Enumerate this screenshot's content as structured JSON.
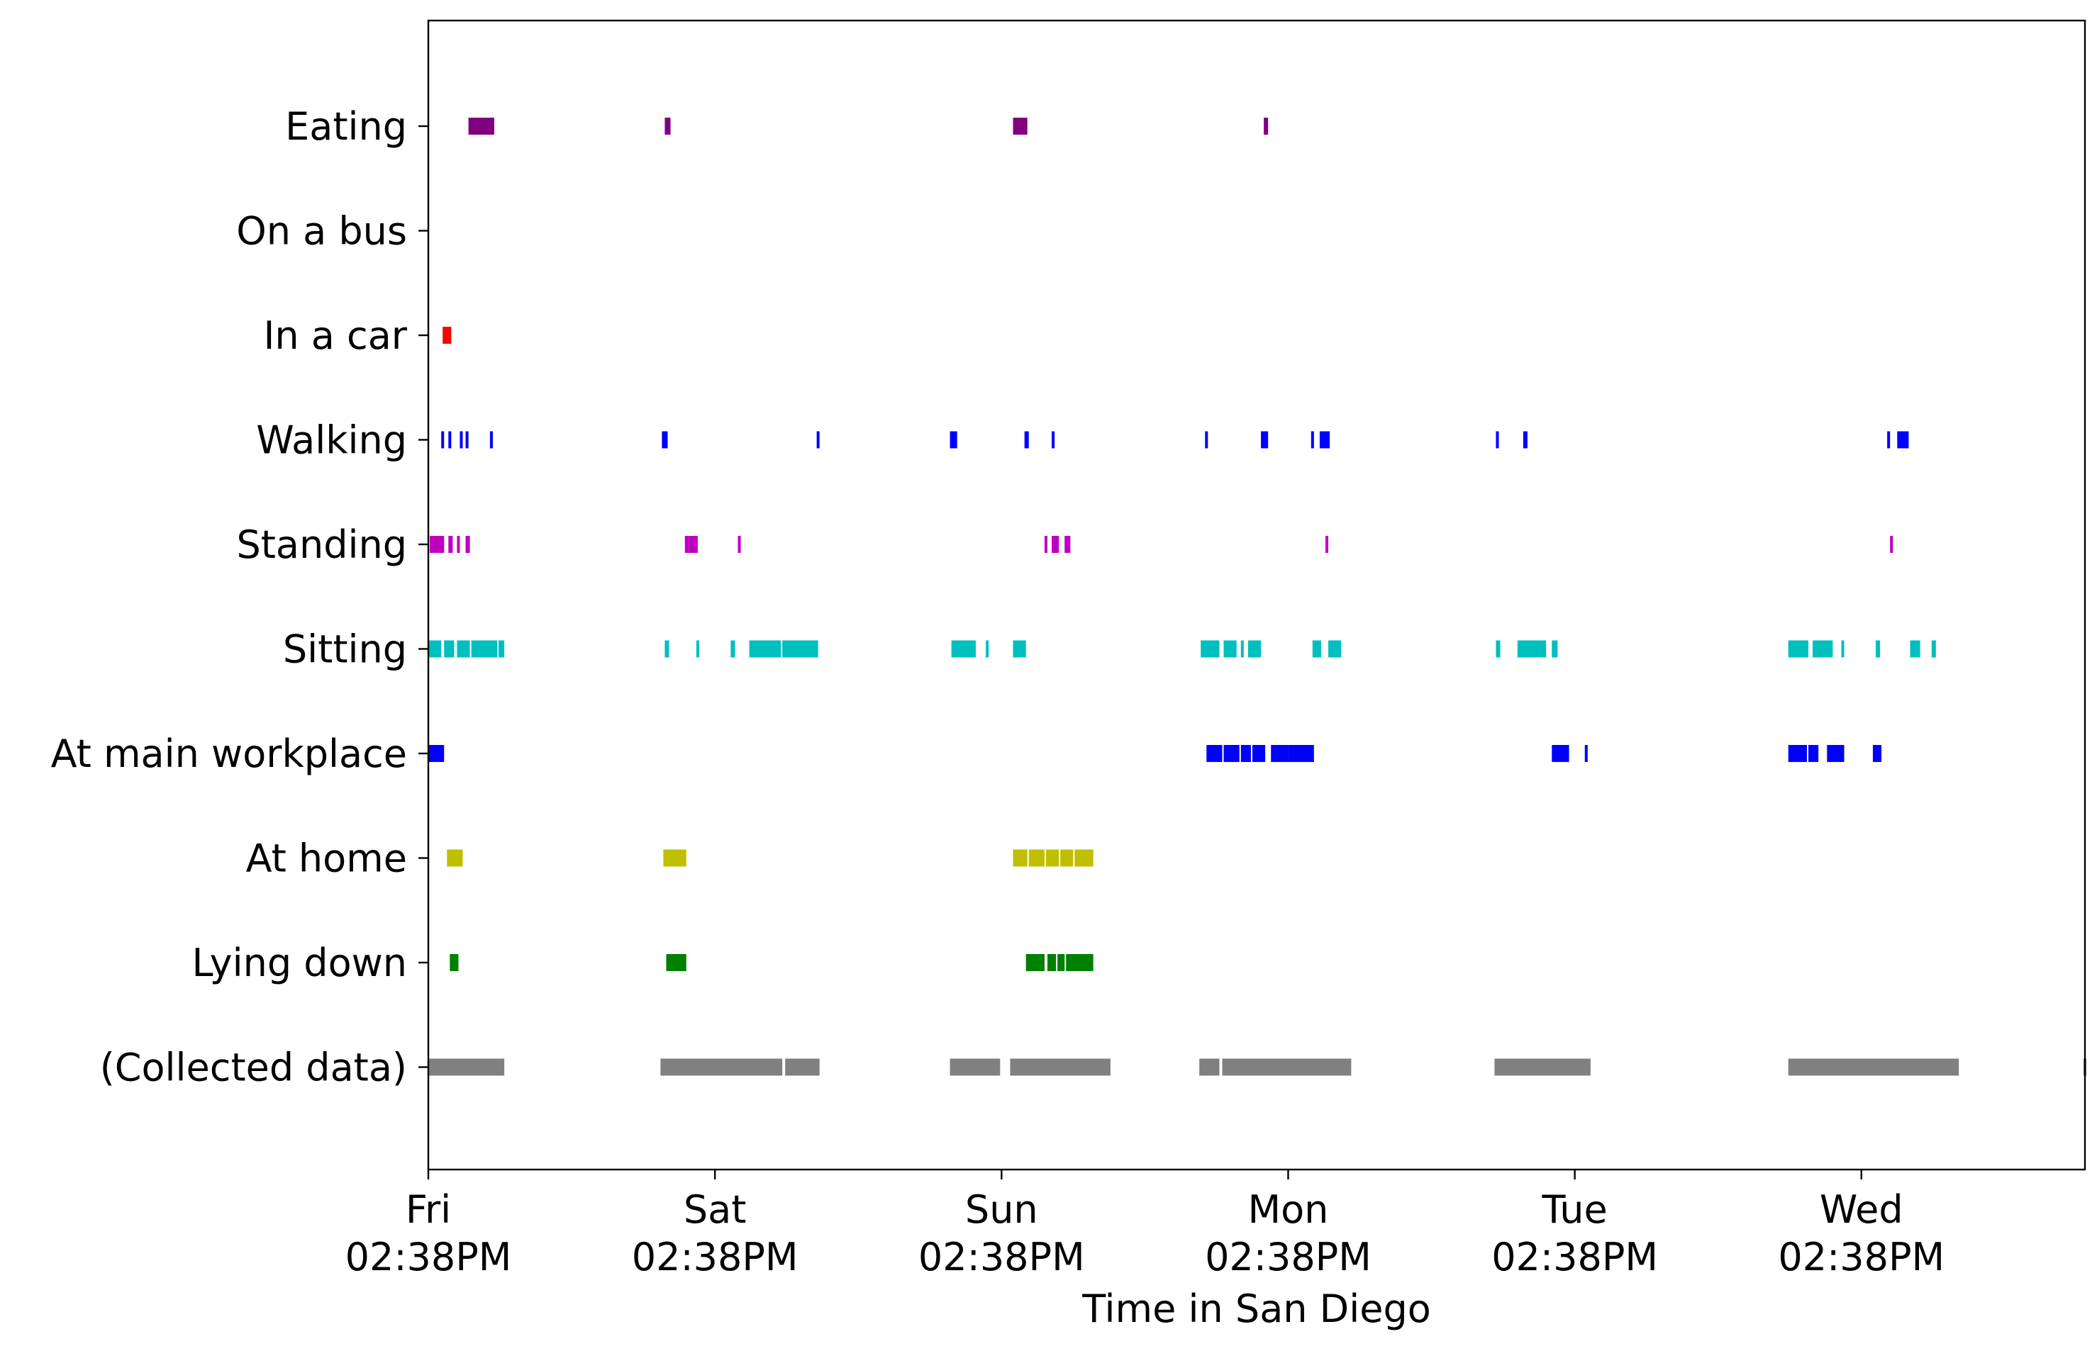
{
  "chart_data": {
    "type": "timeline",
    "title": "",
    "xlabel": "Time in San Diego",
    "ylabel": "",
    "x_unit": "days since Fri 02:38PM",
    "xlim": [
      0,
      5.78
    ],
    "grid": false,
    "x_ticks": [
      {
        "value": 0,
        "day": "Fri",
        "time": "02:38PM"
      },
      {
        "value": 1,
        "day": "Sat",
        "time": "02:38PM"
      },
      {
        "value": 2,
        "day": "Sun",
        "time": "02:38PM"
      },
      {
        "value": 3,
        "day": "Mon",
        "time": "02:38PM"
      },
      {
        "value": 4,
        "day": "Tue",
        "time": "02:38PM"
      },
      {
        "value": 5,
        "day": "Wed",
        "time": "02:38PM"
      }
    ],
    "rows": [
      {
        "label": "Eating",
        "color": "#800080",
        "intervals": [
          [
            0.14,
            0.23
          ],
          [
            0.825,
            0.845
          ],
          [
            2.04,
            2.09
          ],
          [
            2.915,
            2.93
          ]
        ]
      },
      {
        "label": "On a bus",
        "color": "#0000ff",
        "intervals": []
      },
      {
        "label": "In a car",
        "color": "#ff0000",
        "intervals": [
          [
            0.05,
            0.08
          ]
        ]
      },
      {
        "label": "Walking",
        "color": "#0000ff",
        "intervals": [
          [
            0.045,
            0.055
          ],
          [
            0.07,
            0.08
          ],
          [
            0.11,
            0.12
          ],
          [
            0.13,
            0.14
          ],
          [
            0.215,
            0.225
          ],
          [
            0.815,
            0.835
          ],
          [
            1.355,
            1.365
          ],
          [
            1.82,
            1.845
          ],
          [
            2.08,
            2.095
          ],
          [
            2.175,
            2.185
          ],
          [
            2.71,
            2.72
          ],
          [
            2.905,
            2.93
          ],
          [
            3.08,
            3.09
          ],
          [
            3.11,
            3.145
          ],
          [
            3.725,
            3.735
          ],
          [
            3.82,
            3.835
          ],
          [
            5.09,
            5.1
          ],
          [
            5.125,
            5.165
          ]
        ]
      },
      {
        "label": "Standing",
        "color": "#bf00bf",
        "intervals": [
          [
            0.005,
            0.055
          ],
          [
            0.07,
            0.085
          ],
          [
            0.1,
            0.11
          ],
          [
            0.13,
            0.145
          ],
          [
            0.895,
            0.91
          ],
          [
            0.91,
            0.94
          ],
          [
            1.08,
            1.09
          ],
          [
            2.15,
            2.16
          ],
          [
            2.175,
            2.2
          ],
          [
            2.22,
            2.24
          ],
          [
            3.13,
            3.14
          ],
          [
            5.1,
            5.11
          ]
        ]
      },
      {
        "label": "Sitting",
        "color": "#00bfbf",
        "intervals": [
          [
            0.0,
            0.045
          ],
          [
            0.055,
            0.09
          ],
          [
            0.1,
            0.145
          ],
          [
            0.15,
            0.24
          ],
          [
            0.245,
            0.265
          ],
          [
            0.825,
            0.84
          ],
          [
            0.935,
            0.945
          ],
          [
            1.055,
            1.07
          ],
          [
            1.12,
            1.23
          ],
          [
            1.235,
            1.36
          ],
          [
            1.825,
            1.91
          ],
          [
            1.945,
            1.955
          ],
          [
            2.04,
            2.085
          ],
          [
            2.695,
            2.76
          ],
          [
            2.775,
            2.82
          ],
          [
            2.835,
            2.845
          ],
          [
            2.86,
            2.905
          ],
          [
            3.085,
            3.115
          ],
          [
            3.14,
            3.185
          ],
          [
            3.725,
            3.74
          ],
          [
            3.8,
            3.9
          ],
          [
            3.92,
            3.94
          ],
          [
            4.745,
            4.815
          ],
          [
            4.83,
            4.9
          ],
          [
            4.93,
            4.94
          ],
          [
            5.05,
            5.065
          ],
          [
            5.17,
            5.205
          ],
          [
            5.245,
            5.26
          ]
        ]
      },
      {
        "label": "At main workplace",
        "color": "#0000ff",
        "intervals": [
          [
            0.0,
            0.055
          ],
          [
            2.715,
            2.77
          ],
          [
            2.775,
            2.83
          ],
          [
            2.835,
            2.87
          ],
          [
            2.875,
            2.92
          ],
          [
            2.94,
            3.0
          ],
          [
            3.0,
            3.09
          ],
          [
            3.92,
            3.98
          ],
          [
            4.035,
            4.045
          ],
          [
            4.745,
            4.81
          ],
          [
            4.815,
            4.85
          ],
          [
            4.88,
            4.94
          ],
          [
            5.04,
            5.07
          ]
        ]
      },
      {
        "label": "At home",
        "color": "#bfbf00",
        "intervals": [
          [
            0.065,
            0.12
          ],
          [
            0.82,
            0.9
          ],
          [
            2.04,
            2.09
          ],
          [
            2.095,
            2.15
          ],
          [
            2.155,
            2.2
          ],
          [
            2.205,
            2.25
          ],
          [
            2.255,
            2.32
          ]
        ]
      },
      {
        "label": "Lying down",
        "color": "#008000",
        "intervals": [
          [
            0.075,
            0.105
          ],
          [
            0.83,
            0.9
          ],
          [
            2.085,
            2.15
          ],
          [
            2.16,
            2.19
          ],
          [
            2.195,
            2.22
          ],
          [
            2.225,
            2.32
          ]
        ]
      },
      {
        "label": "(Collected data)",
        "color": "#808080",
        "intervals": [
          [
            0.0,
            0.265
          ],
          [
            0.81,
            1.235
          ],
          [
            1.245,
            1.365
          ],
          [
            1.82,
            1.995
          ],
          [
            2.03,
            2.38
          ],
          [
            2.69,
            2.76
          ],
          [
            2.77,
            3.22
          ],
          [
            3.72,
            4.055
          ],
          [
            4.745,
            5.34
          ],
          [
            5.775,
            5.785
          ]
        ]
      }
    ]
  }
}
